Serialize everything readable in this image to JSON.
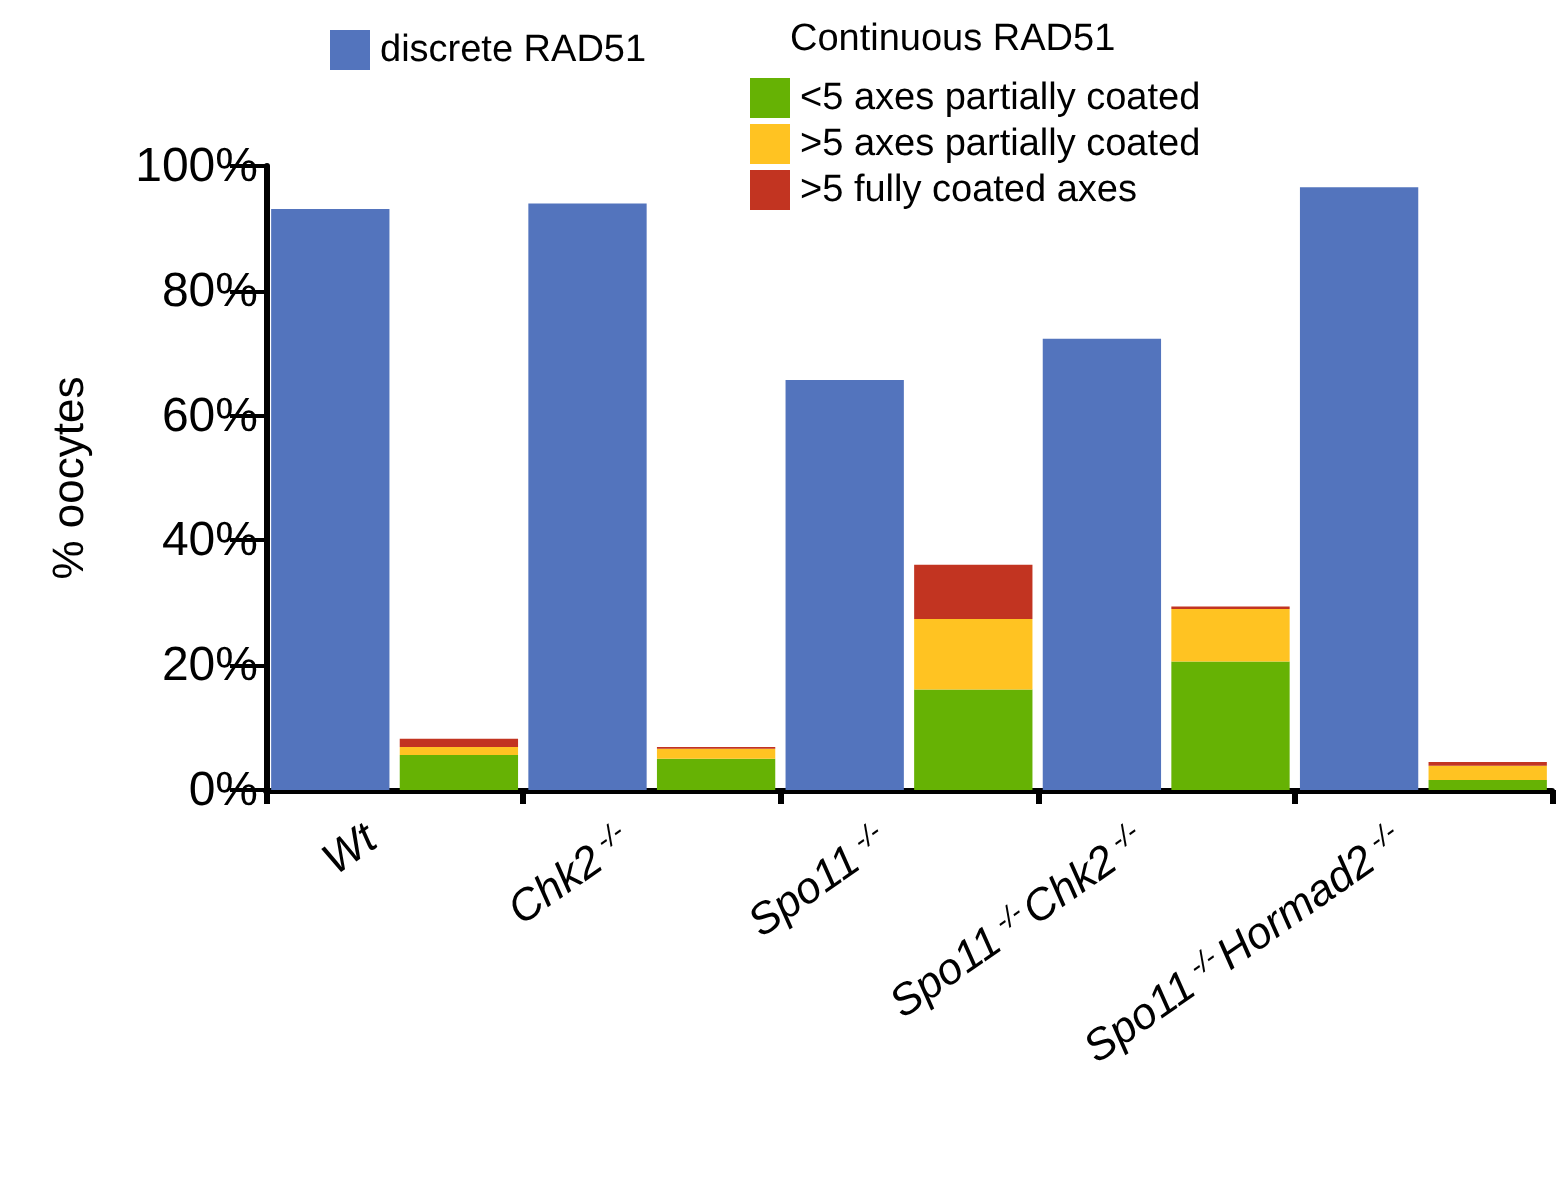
{
  "chart_data": {
    "type": "bar",
    "ylabel": "% oocytes",
    "legend_title": "Continuous RAD51",
    "legend": "top",
    "stacked": true,
    "categories": [
      "Wt",
      null,
      "Chk2$^{-/-}$",
      null,
      "Spo11$^{-/-}$",
      null,
      "Spo11$^{-/-}$Chk2$^{-/-}$",
      null,
      "Spo11$^{-/-}$Hormad2$^{-/-}$",
      null
    ],
    "ylim": [
      0,
      100
    ],
    "yticks": [
      {
        "value": 0,
        "label": "0%"
      },
      {
        "value": 20,
        "label": "20%"
      },
      {
        "value": 40,
        "label": "40%"
      },
      {
        "value": 60,
        "label": "60%"
      },
      {
        "value": 80,
        "label": "80%"
      },
      {
        "value": 100,
        "label": "100%"
      }
    ],
    "series": [
      {
        "name": "discrete RAD51",
        "color": "#5374bd",
        "values": [
          93.1,
          null,
          94.0,
          null,
          65.7,
          null,
          72.3,
          null,
          96.6,
          null
        ]
      },
      {
        "name": "<5 axes partially coated",
        "color": "#66b204",
        "values": [
          null,
          5.6,
          null,
          5.0,
          null,
          16.1,
          null,
          20.6,
          null,
          1.6
        ]
      },
      {
        "name": ">5 axes partially coated",
        "color": "#ffc322",
        "values": [
          null,
          1.3,
          null,
          1.6,
          null,
          11.3,
          null,
          8.4,
          null,
          2.3
        ]
      },
      {
        "name": ">5 fully coated axes",
        "color": "#c23421",
        "values": [
          null,
          1.3,
          null,
          0.3,
          null,
          8.7,
          null,
          0.4,
          null,
          0.6
        ]
      }
    ]
  }
}
